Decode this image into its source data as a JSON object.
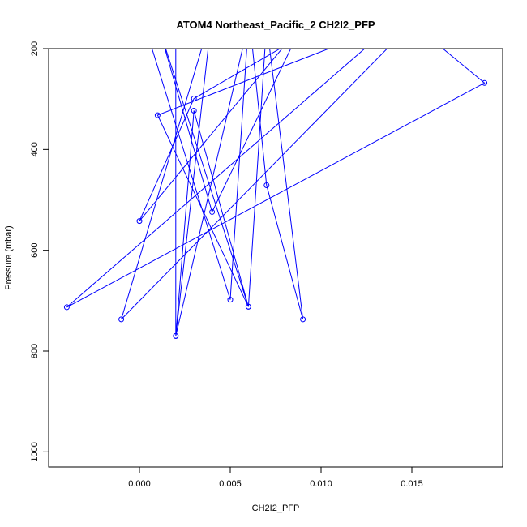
{
  "chart_data": {
    "type": "line",
    "title": "ATOM4 Northeast_Pacific_2 CH2I2_PFP",
    "xlabel": "CH2I2_PFP",
    "ylabel": "Pressure (mbar)",
    "xlim": [
      -0.005,
      0.02
    ],
    "ylim": [
      1030,
      200
    ],
    "y_reversed": true,
    "x_ticks": [
      "0.000",
      "0.005",
      "0.010",
      "0.015"
    ],
    "y_ticks": [
      "200",
      "400",
      "600",
      "800",
      "1000"
    ],
    "grid": false,
    "legend": "none",
    "series": [
      {
        "color": "#0000ff",
        "marker": "open-circle",
        "points": [
          [
            0.0,
            120
          ],
          [
            0.005,
            698
          ],
          [
            0.006,
            150
          ],
          [
            0.002,
            770
          ],
          [
            0.003,
            323
          ],
          [
            0.006,
            712
          ],
          [
            0.001,
            332
          ],
          [
            0.014,
            150
          ],
          [
            -0.004,
            713
          ],
          [
            0.019,
            268
          ],
          [
            0.013,
            90
          ],
          [
            0.003,
            299
          ],
          [
            0.0,
            542
          ],
          [
            0.009,
            150
          ],
          [
            0.004,
            524
          ],
          [
            0.001,
            150
          ],
          [
            0.006,
            712
          ],
          [
            0.007,
            150
          ],
          [
            0.009,
            737
          ],
          [
            0.007,
            471
          ],
          [
            0.006,
            120
          ],
          [
            0.002,
            150
          ],
          [
            0.002,
            770
          ],
          [
            0.004,
            130
          ],
          [
            -0.001,
            737
          ],
          [
            0.015,
            150
          ]
        ]
      }
    ]
  }
}
